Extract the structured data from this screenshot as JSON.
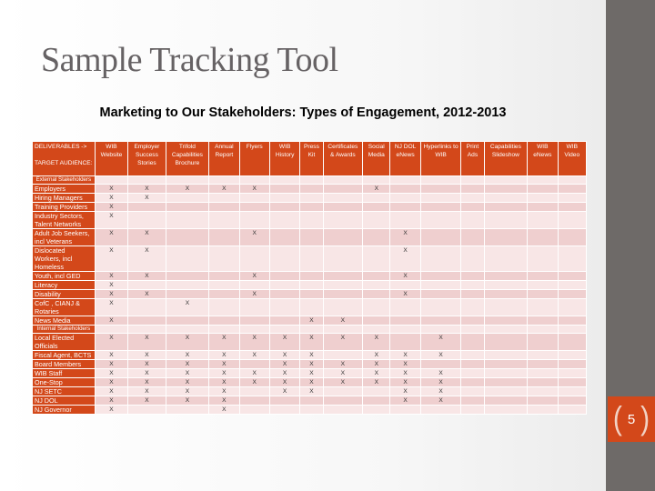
{
  "slide": {
    "title": "Sample Tracking Tool",
    "subtitle": "Marketing to Our Stakeholders: Types of Engagement, 2012-2013",
    "page_number": "5",
    "accent_color": "#d3481a",
    "sidebar_color": "#6e6a68"
  },
  "table": {
    "corner_header": "DELIVERABLES ->\n\nTARGET AUDIENCE:",
    "columns": [
      "WIB Website",
      "Employer Success Stories",
      "Trifold Capabilities Brochure",
      "Annual Report",
      "Flyers",
      "WIB History",
      "Press Kit",
      "Certificates & Awards",
      "Social Media",
      "NJ DOL eNews",
      "Hyperlinks to WIB",
      "Print Ads",
      "Capabilities Slideshow",
      "WIB eNews",
      "WIB Video"
    ],
    "rows": [
      {
        "label": "External Stakeholders",
        "section": true,
        "cells": [
          "",
          "",
          "",
          "",
          "",
          "",
          "",
          "",
          "",
          "",
          "",
          "",
          "",
          "",
          ""
        ]
      },
      {
        "label": "Employers",
        "cells": [
          "X",
          "X",
          "X",
          "X",
          "X",
          "",
          "",
          "",
          "X",
          "",
          "",
          "",
          "",
          "",
          ""
        ]
      },
      {
        "label": "Hiring Managers",
        "cells": [
          "X",
          "X",
          "",
          "",
          "",
          "",
          "",
          "",
          "",
          "",
          "",
          "",
          "",
          "",
          ""
        ]
      },
      {
        "label": "Training Providers",
        "cells": [
          "X",
          "",
          "",
          "",
          "",
          "",
          "",
          "",
          "",
          "",
          "",
          "",
          "",
          "",
          ""
        ]
      },
      {
        "label": "Industry Sectors, Talent Networks",
        "cells": [
          "X",
          "",
          "",
          "",
          "",
          "",
          "",
          "",
          "",
          "",
          "",
          "",
          "",
          "",
          ""
        ]
      },
      {
        "label": "Adult Job Seekers, incl Veterans",
        "cells": [
          "X",
          "X",
          "",
          "",
          "X",
          "",
          "",
          "",
          "",
          "X",
          "",
          "",
          "",
          "",
          ""
        ]
      },
      {
        "label": "Dislocated Workers, incl Homeless",
        "cells": [
          "X",
          "X",
          "",
          "",
          "",
          "",
          "",
          "",
          "",
          "X",
          "",
          "",
          "",
          "",
          ""
        ]
      },
      {
        "label": "Youth, incl GED",
        "cells": [
          "X",
          "X",
          "",
          "",
          "X",
          "",
          "",
          "",
          "",
          "X",
          "",
          "",
          "",
          "",
          ""
        ]
      },
      {
        "label": "Literacy",
        "cells": [
          "X",
          "",
          "",
          "",
          "",
          "",
          "",
          "",
          "",
          "",
          "",
          "",
          "",
          "",
          ""
        ]
      },
      {
        "label": "Disability",
        "cells": [
          "X",
          "X",
          "",
          "",
          "X",
          "",
          "",
          "",
          "",
          "X",
          "",
          "",
          "",
          "",
          ""
        ]
      },
      {
        "label": "CofC , CIANJ & Rotaries",
        "cells": [
          "X",
          "",
          "X",
          "",
          "",
          "",
          "",
          "",
          "",
          "",
          "",
          "",
          "",
          "",
          ""
        ]
      },
      {
        "label": "News Media",
        "cells": [
          "X",
          "",
          "",
          "",
          "",
          "",
          "X",
          "X",
          "",
          "",
          "",
          "",
          "",
          "",
          ""
        ]
      },
      {
        "label": "Internal Stakeholders",
        "section": true,
        "cells": [
          "",
          "",
          "",
          "",
          "",
          "",
          "",
          "",
          "",
          "",
          "",
          "",
          "",
          "",
          ""
        ]
      },
      {
        "label": "Local Elected Officials",
        "cells": [
          "X",
          "X",
          "X",
          "X",
          "X",
          "X",
          "X",
          "X",
          "X",
          "",
          "X",
          "",
          "",
          "",
          ""
        ]
      },
      {
        "label": "Fiscal Agent, BCTS",
        "cells": [
          "X",
          "X",
          "X",
          "X",
          "X",
          "X",
          "X",
          "",
          "X",
          "X",
          "X",
          "",
          "",
          "",
          ""
        ]
      },
      {
        "label": "Board Members",
        "cells": [
          "X",
          "X",
          "X",
          "X",
          "",
          "X",
          "X",
          "X",
          "X",
          "X",
          "",
          "",
          "",
          "",
          ""
        ]
      },
      {
        "label": "WIB Staff",
        "cells": [
          "X",
          "X",
          "X",
          "X",
          "X",
          "X",
          "X",
          "X",
          "X",
          "X",
          "X",
          "",
          "",
          "",
          ""
        ]
      },
      {
        "label": "One-Stop",
        "cells": [
          "X",
          "X",
          "X",
          "X",
          "X",
          "X",
          "X",
          "X",
          "X",
          "X",
          "X",
          "",
          "",
          "",
          ""
        ]
      },
      {
        "label": "NJ SETC",
        "cells": [
          "X",
          "X",
          "X",
          "X",
          "",
          "X",
          "X",
          "",
          "",
          "X",
          "X",
          "",
          "",
          "",
          ""
        ]
      },
      {
        "label": "NJ DOL",
        "cells": [
          "X",
          "X",
          "X",
          "X",
          "",
          "",
          "",
          "",
          "",
          "X",
          "X",
          "",
          "",
          "",
          ""
        ]
      },
      {
        "label": "NJ Governor",
        "cells": [
          "X",
          "",
          "",
          "X",
          "",
          "",
          "",
          "",
          "",
          "",
          "",
          "",
          "",
          "",
          ""
        ]
      }
    ]
  }
}
